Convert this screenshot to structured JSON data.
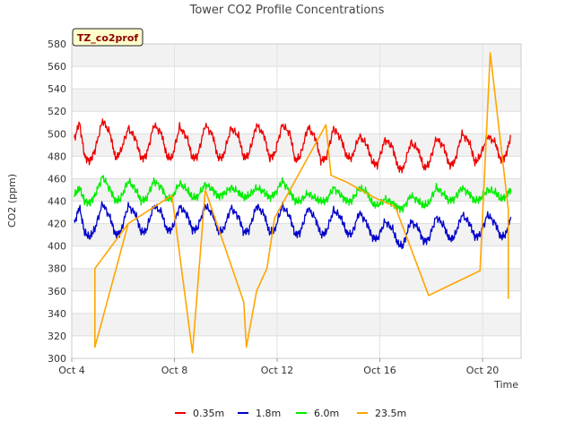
{
  "chart_data": {
    "type": "line",
    "title": "Tower CO2 Profile Concentrations",
    "ylabel": "CO2 (ppm)",
    "xlabel": "Time",
    "badge": "TZ_co2prof",
    "xlim": [
      4,
      21.5
    ],
    "ylim": [
      300,
      580
    ],
    "yticks": [
      300,
      320,
      340,
      360,
      380,
      400,
      420,
      440,
      460,
      480,
      500,
      520,
      540,
      560,
      580
    ],
    "xticks": [
      {
        "value": 4,
        "label": "Oct 4"
      },
      {
        "value": 8,
        "label": "Oct 8"
      },
      {
        "value": 12,
        "label": "Oct 12"
      },
      {
        "value": 16,
        "label": "Oct 16"
      },
      {
        "value": 20,
        "label": "Oct 20"
      }
    ],
    "series": [
      {
        "name": "0.35m",
        "color": "#ee0000",
        "x": [
          4.1,
          4.3,
          4.5,
          4.7,
          4.9,
          5.2,
          5.5,
          5.7,
          5.9,
          6.2,
          6.5,
          6.7,
          6.9,
          7.2,
          7.5,
          7.7,
          7.9,
          8.2,
          8.5,
          8.7,
          8.9,
          9.2,
          9.5,
          9.7,
          9.9,
          10.2,
          10.5,
          10.7,
          10.9,
          11.2,
          11.5,
          11.7,
          11.9,
          12.2,
          12.5,
          12.7,
          12.9,
          13.2,
          13.5,
          13.7,
          13.9,
          14.2,
          14.5,
          14.7,
          14.9,
          15.2,
          15.5,
          15.7,
          15.9,
          16.2,
          16.5,
          16.7,
          16.9,
          17.2,
          17.5,
          17.7,
          17.9,
          18.2,
          18.5,
          18.7,
          18.9,
          19.2,
          19.5,
          19.7,
          19.9,
          20.2,
          20.5,
          20.7,
          20.9,
          21.1
        ],
        "values": [
          495,
          510,
          480,
          475,
          485,
          512,
          500,
          478,
          484,
          505,
          495,
          478,
          480,
          508,
          500,
          480,
          478,
          506,
          496,
          478,
          480,
          508,
          498,
          478,
          480,
          505,
          498,
          478,
          482,
          508,
          498,
          478,
          482,
          508,
          500,
          476,
          480,
          506,
          496,
          476,
          478,
          505,
          495,
          480,
          478,
          498,
          490,
          475,
          472,
          495,
          488,
          470,
          468,
          492,
          486,
          470,
          472,
          496,
          488,
          472,
          474,
          500,
          492,
          474,
          480,
          498,
          492,
          476,
          480,
          498
        ]
      },
      {
        "name": "1.8m",
        "color": "#0000cc",
        "x": [
          4.1,
          4.3,
          4.5,
          4.7,
          4.9,
          5.2,
          5.5,
          5.7,
          5.9,
          6.2,
          6.5,
          6.7,
          6.9,
          7.2,
          7.5,
          7.7,
          7.9,
          8.2,
          8.5,
          8.7,
          8.9,
          9.2,
          9.5,
          9.7,
          9.9,
          10.2,
          10.5,
          10.7,
          10.9,
          11.2,
          11.5,
          11.7,
          11.9,
          12.2,
          12.5,
          12.7,
          12.9,
          13.2,
          13.5,
          13.7,
          13.9,
          14.2,
          14.5,
          14.7,
          14.9,
          15.2,
          15.5,
          15.7,
          15.9,
          16.2,
          16.5,
          16.7,
          16.9,
          17.2,
          17.5,
          17.7,
          17.9,
          18.2,
          18.5,
          18.7,
          18.9,
          19.2,
          19.5,
          19.7,
          19.9,
          20.2,
          20.5,
          20.7,
          20.9,
          21.1
        ],
        "values": [
          420,
          435,
          412,
          408,
          415,
          438,
          425,
          410,
          412,
          436,
          428,
          412,
          414,
          436,
          430,
          414,
          415,
          435,
          428,
          414,
          416,
          436,
          428,
          413,
          414,
          434,
          426,
          412,
          414,
          436,
          428,
          412,
          414,
          436,
          426,
          410,
          412,
          434,
          424,
          410,
          412,
          432,
          425,
          412,
          410,
          430,
          420,
          408,
          406,
          422,
          415,
          402,
          400,
          422,
          416,
          404,
          406,
          426,
          418,
          406,
          408,
          428,
          420,
          408,
          410,
          428,
          420,
          408,
          410,
          426
        ]
      },
      {
        "name": "6.0m",
        "color": "#00ee00",
        "x": [
          4.1,
          4.3,
          4.5,
          4.7,
          4.9,
          5.2,
          5.5,
          5.7,
          5.9,
          6.2,
          6.5,
          6.7,
          6.9,
          7.2,
          7.5,
          7.7,
          7.9,
          8.2,
          8.5,
          8.7,
          8.9,
          9.2,
          9.5,
          9.7,
          9.9,
          10.2,
          10.5,
          10.7,
          10.9,
          11.2,
          11.5,
          11.7,
          11.9,
          12.2,
          12.5,
          12.7,
          12.9,
          13.2,
          13.5,
          13.7,
          13.9,
          14.2,
          14.5,
          14.7,
          14.9,
          15.2,
          15.5,
          15.7,
          15.9,
          16.2,
          16.5,
          16.7,
          16.9,
          17.2,
          17.5,
          17.7,
          17.9,
          18.2,
          18.5,
          18.7,
          18.9,
          19.2,
          19.5,
          19.7,
          19.9,
          20.2,
          20.5,
          20.7,
          20.9,
          21.1
        ],
        "values": [
          445,
          452,
          440,
          438,
          445,
          462,
          450,
          440,
          442,
          458,
          450,
          440,
          442,
          458,
          452,
          442,
          443,
          456,
          450,
          443,
          444,
          455,
          450,
          444,
          446,
          452,
          448,
          443,
          445,
          452,
          448,
          443,
          446,
          458,
          448,
          440,
          440,
          447,
          442,
          440,
          440,
          452,
          445,
          440,
          440,
          452,
          448,
          438,
          436,
          442,
          438,
          434,
          433,
          445,
          440,
          436,
          438,
          452,
          446,
          440,
          442,
          452,
          446,
          440,
          442,
          450,
          448,
          442,
          444,
          451
        ]
      },
      {
        "name": "23.5m",
        "color": "#ffa500",
        "x": [
          6.2,
          4.9,
          4.9,
          6.2,
          7.9,
          8.7,
          9.2,
          10.7,
          10.8,
          11.2,
          11.6,
          11.9,
          13.9,
          14.1,
          14.7,
          15.8,
          16.6,
          17.9,
          19.9,
          20.3,
          21.0,
          21.0
        ],
        "values": [
          420,
          310,
          380,
          420,
          445,
          305,
          450,
          350,
          310,
          360,
          380,
          425,
          508,
          463,
          457,
          443,
          435,
          356,
          378,
          572,
          433,
          353
        ]
      }
    ]
  }
}
